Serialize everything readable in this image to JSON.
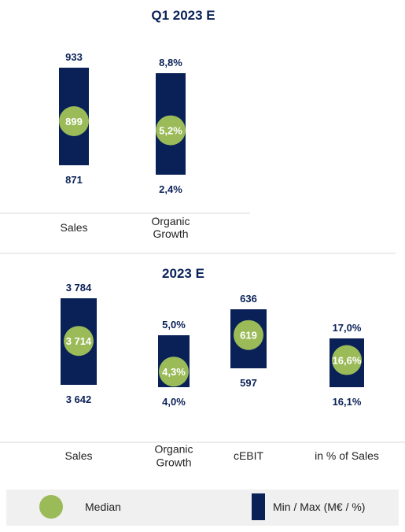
{
  "colors": {
    "bar": "#0a2158",
    "median": "#9bbb59",
    "label": "#0a2158",
    "category": "#222222",
    "separator": "#d9d9d9"
  },
  "legend": {
    "median_label": "Median",
    "minmax_label": "Min / Max (M€ / %)"
  },
  "chart_data": [
    {
      "type": "range-bar",
      "title": "Q1 2023 E",
      "categories": [
        "Sales",
        "Organic\nGrowth"
      ],
      "series": [
        {
          "name": "Min / Max (M€ / %)",
          "min": [
            871,
            2.4
          ],
          "max": [
            933,
            8.8
          ]
        },
        {
          "name": "Median",
          "values": [
            899,
            5.2
          ]
        }
      ],
      "labels": {
        "max": [
          "933",
          "8,8%"
        ],
        "min": [
          "871",
          "2,4%"
        ],
        "median": [
          "899",
          "5,2%"
        ]
      }
    },
    {
      "type": "range-bar",
      "title": "2023 E",
      "categories": [
        "Sales",
        "Organic\nGrowth",
        "cEBIT",
        "in % of Sales"
      ],
      "series": [
        {
          "name": "Min / Max (M€ / %)",
          "min": [
            3642,
            4.0,
            597,
            16.1
          ],
          "max": [
            3784,
            5.0,
            636,
            17.0
          ]
        },
        {
          "name": "Median",
          "values": [
            3714,
            4.3,
            619,
            16.6
          ]
        }
      ],
      "labels": {
        "max": [
          "3 784",
          "5,0%",
          "636",
          "17,0%"
        ],
        "min": [
          "3 642",
          "4,0%",
          "597",
          "16,1%"
        ],
        "median": [
          "3 714",
          "4,3%",
          "619",
          "16,6%"
        ]
      }
    }
  ]
}
